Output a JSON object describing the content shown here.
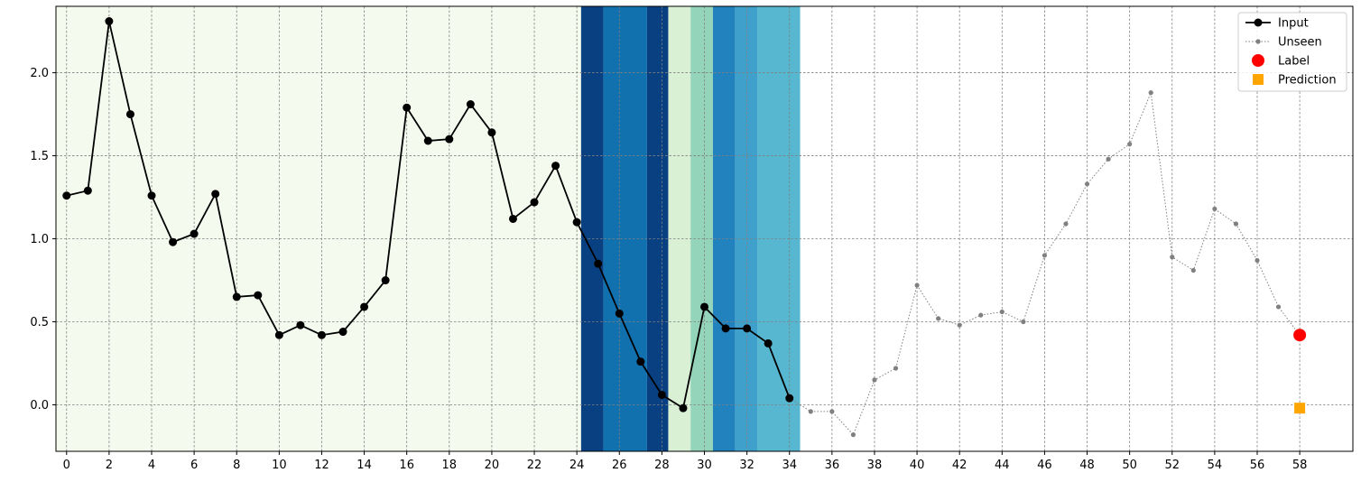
{
  "chart_data": {
    "type": "line",
    "title": "",
    "xlabel": "",
    "ylabel": "",
    "xlim": [
      -0.5,
      60.5
    ],
    "ylim": [
      -0.28,
      2.4
    ],
    "xticks": [
      0,
      2,
      4,
      6,
      8,
      10,
      12,
      14,
      16,
      18,
      20,
      22,
      24,
      26,
      28,
      30,
      32,
      34,
      36,
      38,
      40,
      42,
      44,
      46,
      48,
      50,
      52,
      54,
      56,
      58
    ],
    "yticks": [
      0.0,
      0.5,
      1.0,
      1.5,
      2.0
    ],
    "ytick_labels": [
      "0.0",
      "0.5",
      "1.0",
      "1.5",
      "2.0"
    ],
    "grid": true,
    "legend_position": "top-right",
    "series": [
      {
        "name": "Input",
        "color": "#000000",
        "style": "solid line with filled circle markers",
        "x": [
          0,
          1,
          2,
          3,
          4,
          5,
          6,
          7,
          8,
          9,
          10,
          11,
          12,
          13,
          14,
          15,
          16,
          17,
          18,
          19,
          20,
          21,
          22,
          23,
          24,
          25,
          26,
          27,
          28,
          29,
          30,
          31,
          32,
          33,
          34
        ],
        "y": [
          1.26,
          1.29,
          2.31,
          1.75,
          1.26,
          0.98,
          1.03,
          1.27,
          0.65,
          0.66,
          0.42,
          0.48,
          0.42,
          0.44,
          0.59,
          0.75,
          1.79,
          1.59,
          1.6,
          1.81,
          1.64,
          1.12,
          1.22,
          1.44,
          1.1,
          0.85,
          0.55,
          0.26,
          0.06,
          -0.02,
          0.59,
          0.46,
          0.46,
          0.37,
          0.04
        ]
      },
      {
        "name": "Unseen",
        "color": "#808080",
        "style": "dotted line with small circle markers",
        "x": [
          34,
          35,
          36,
          37,
          38,
          39,
          40,
          41,
          42,
          43,
          44,
          45,
          46,
          47,
          48,
          49,
          50,
          51,
          52,
          53,
          54,
          55,
          56,
          57,
          58
        ],
        "y": [
          0.04,
          -0.04,
          -0.04,
          -0.18,
          0.15,
          0.22,
          0.72,
          0.52,
          0.48,
          0.54,
          0.56,
          0.5,
          0.9,
          1.09,
          1.33,
          1.48,
          1.57,
          1.88,
          0.89,
          0.81,
          1.18,
          1.09,
          0.87,
          0.59,
          0.42
        ]
      },
      {
        "name": "Label",
        "color": "#ff0000",
        "style": "large circle marker",
        "x": [
          58
        ],
        "y": [
          0.42
        ]
      },
      {
        "name": "Prediction",
        "color": "#ffa500",
        "style": "square marker",
        "x": [
          58
        ],
        "y": [
          -0.02
        ]
      }
    ],
    "background_bands": [
      {
        "x0": -0.5,
        "x1": 24.2,
        "color": "#f4fbee"
      },
      {
        "x0": 24.2,
        "x1": 25.25,
        "color": "#084081"
      },
      {
        "x0": 25.25,
        "x1": 27.3,
        "color": "#1170ae"
      },
      {
        "x0": 27.3,
        "x1": 28.3,
        "color": "#084081"
      },
      {
        "x0": 28.3,
        "x1": 29.35,
        "color": "#d9f0d5"
      },
      {
        "x0": 29.35,
        "x1": 30.4,
        "color": "#93d4bb"
      },
      {
        "x0": 30.4,
        "x1": 31.45,
        "color": "#2182bd"
      },
      {
        "x0": 31.45,
        "x1": 32.5,
        "color": "#3fa0cc"
      },
      {
        "x0": 32.5,
        "x1": 34.5,
        "color": "#57b7d0"
      }
    ]
  }
}
